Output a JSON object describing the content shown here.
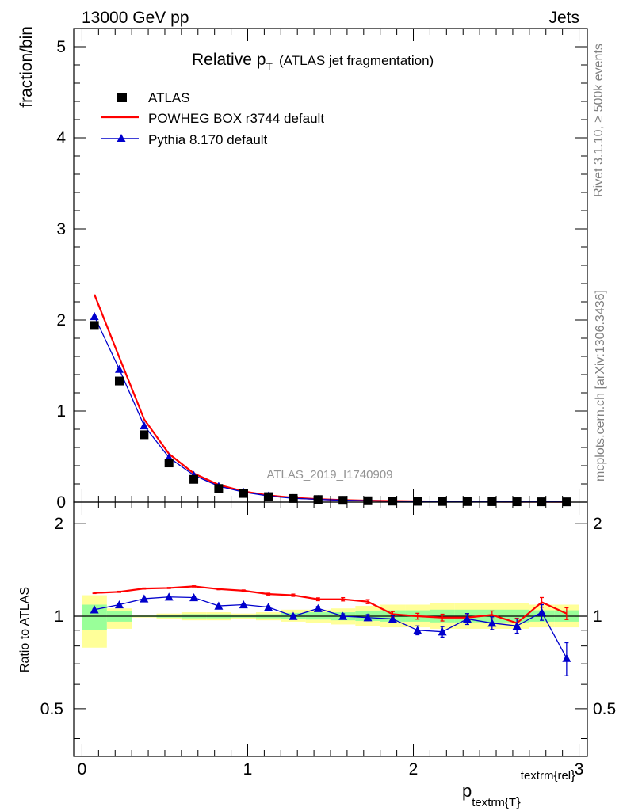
{
  "header": {
    "energy_label": "13000 GeV pp",
    "category_label": "Jets",
    "rivet_label": "Rivet 3.1.10, ≥ 500k events",
    "mcplots_label": "mcplots.cern.ch [arXiv:1306.3436]",
    "analysis_id": "ATLAS_2019_I1740909"
  },
  "chart_data": [
    {
      "type": "scatter",
      "title_main": "Relative p",
      "title_sub": "T",
      "title_suffix": "(ATLAS jet fragmentation)",
      "ylabel": "fraction/bin",
      "xlim": [
        -0.05,
        3.05
      ],
      "ylim": [
        0,
        5.2
      ],
      "yticks": [
        0,
        1,
        2,
        3,
        4,
        5
      ],
      "x": [
        0.075,
        0.225,
        0.375,
        0.525,
        0.675,
        0.825,
        0.975,
        1.125,
        1.275,
        1.425,
        1.575,
        1.725,
        1.875,
        2.025,
        2.175,
        2.325,
        2.475,
        2.625,
        2.775,
        2.925
      ],
      "series": [
        {
          "name": "ATLAS",
          "color": "#000000",
          "marker": "square",
          "values": [
            1.94,
            1.33,
            0.74,
            0.43,
            0.25,
            0.15,
            0.095,
            0.06,
            0.04,
            0.028,
            0.02,
            0.015,
            0.011,
            0.009,
            0.007,
            0.006,
            0.005,
            0.004,
            0.0035,
            0.003
          ]
        },
        {
          "name": "POWHEG BOX r3744 default",
          "color": "#ff0000",
          "marker": "line",
          "values": [
            2.28,
            1.59,
            0.91,
            0.53,
            0.315,
            0.19,
            0.118,
            0.074,
            0.048,
            0.033,
            0.023,
            0.017,
            0.0125,
            0.009,
            0.007,
            0.006,
            0.005,
            0.004,
            0.004,
            0.003
          ]
        },
        {
          "name": "Pythia 8.170 default",
          "color": "#0000cc",
          "marker": "triangle",
          "values": [
            2.04,
            1.46,
            0.84,
            0.49,
            0.295,
            0.175,
            0.11,
            0.068,
            0.042,
            0.03,
            0.021,
            0.015,
            0.011,
            0.008,
            0.006,
            0.006,
            0.005,
            0.004,
            0.004,
            0.002
          ]
        }
      ]
    },
    {
      "type": "scatter",
      "ylabel": "Ratio to ATLAS",
      "xlabel_main": "p",
      "xlabel_sub": "textrm{T",
      "xlabel_sup": "textrm{rel",
      "xlim": [
        -0.05,
        3.05
      ],
      "ylim": [
        0.35,
        2.35
      ],
      "yticks": [
        0.5,
        1,
        2
      ],
      "ytick_labels": [
        "0.5",
        "1",
        "2"
      ],
      "xticks": [
        0,
        1,
        2,
        3
      ],
      "xtick_labels": [
        "0",
        "1",
        "2",
        "3"
      ],
      "reference": 1,
      "x": [
        0.075,
        0.225,
        0.375,
        0.525,
        0.675,
        0.825,
        0.975,
        1.125,
        1.275,
        1.425,
        1.575,
        1.725,
        1.875,
        2.025,
        2.175,
        2.325,
        2.475,
        2.625,
        2.775,
        2.925
      ],
      "band_edges": [
        0.0,
        0.15,
        0.3,
        0.45,
        0.6,
        0.75,
        0.9,
        1.05,
        1.2,
        1.35,
        1.5,
        1.65,
        1.8,
        1.95,
        2.1,
        2.25,
        2.4,
        2.55,
        2.7,
        2.85,
        3.0
      ],
      "band_yellow": [
        [
          0.79,
          1.17
        ],
        [
          0.91,
          1.06
        ],
        [
          0.99,
          1.01
        ],
        [
          0.98,
          1.02
        ],
        [
          0.97,
          1.03
        ],
        [
          0.97,
          1.03
        ],
        [
          0.98,
          1.02
        ],
        [
          0.97,
          1.03
        ],
        [
          0.96,
          1.05
        ],
        [
          0.95,
          1.05
        ],
        [
          0.94,
          1.06
        ],
        [
          0.93,
          1.08
        ],
        [
          0.92,
          1.09
        ],
        [
          0.92,
          1.09
        ],
        [
          0.91,
          1.1
        ],
        [
          0.91,
          1.1
        ],
        [
          0.91,
          1.1
        ],
        [
          0.91,
          1.1
        ],
        [
          0.92,
          1.09
        ],
        [
          0.92,
          1.09
        ]
      ],
      "band_green": [
        [
          0.9,
          1.09
        ],
        [
          0.96,
          1.04
        ],
        [
          0.995,
          1.005
        ],
        [
          0.99,
          1.01
        ],
        [
          0.985,
          1.015
        ],
        [
          0.985,
          1.015
        ],
        [
          0.99,
          1.01
        ],
        [
          0.985,
          1.015
        ],
        [
          0.98,
          1.025
        ],
        [
          0.975,
          1.03
        ],
        [
          0.97,
          1.03
        ],
        [
          0.965,
          1.04
        ],
        [
          0.96,
          1.045
        ],
        [
          0.96,
          1.045
        ],
        [
          0.955,
          1.05
        ],
        [
          0.955,
          1.05
        ],
        [
          0.955,
          1.05
        ],
        [
          0.955,
          1.05
        ],
        [
          0.96,
          1.045
        ],
        [
          0.96,
          1.045
        ]
      ],
      "series": [
        {
          "name": "POWHEG BOX r3744 default",
          "color": "#ff0000",
          "marker": "line",
          "values": [
            1.19,
            1.2,
            1.23,
            1.235,
            1.25,
            1.225,
            1.21,
            1.18,
            1.17,
            1.135,
            1.135,
            1.115,
            1.015,
            1.0,
            0.99,
            0.99,
            1.01,
            0.95,
            1.11,
            1.02
          ],
          "errors": [
            0.005,
            0.005,
            0.005,
            0.005,
            0.005,
            0.006,
            0.007,
            0.008,
            0.01,
            0.012,
            0.014,
            0.017,
            0.02,
            0.022,
            0.025,
            0.028,
            0.03,
            0.035,
            0.04,
            0.045
          ]
        },
        {
          "name": "Pythia 8.170 default",
          "color": "#0000cc",
          "marker": "triangle",
          "values": [
            1.05,
            1.09,
            1.14,
            1.155,
            1.15,
            1.08,
            1.09,
            1.07,
            1.0,
            1.06,
            1.0,
            0.99,
            0.98,
            0.9,
            0.89,
            0.98,
            0.95,
            0.93,
            1.03,
            0.73
          ],
          "errors": [
            0.005,
            0.005,
            0.005,
            0.005,
            0.005,
            0.006,
            0.007,
            0.009,
            0.012,
            0.015,
            0.018,
            0.022,
            0.026,
            0.03,
            0.035,
            0.04,
            0.045,
            0.05,
            0.06,
            0.09
          ]
        }
      ]
    }
  ]
}
